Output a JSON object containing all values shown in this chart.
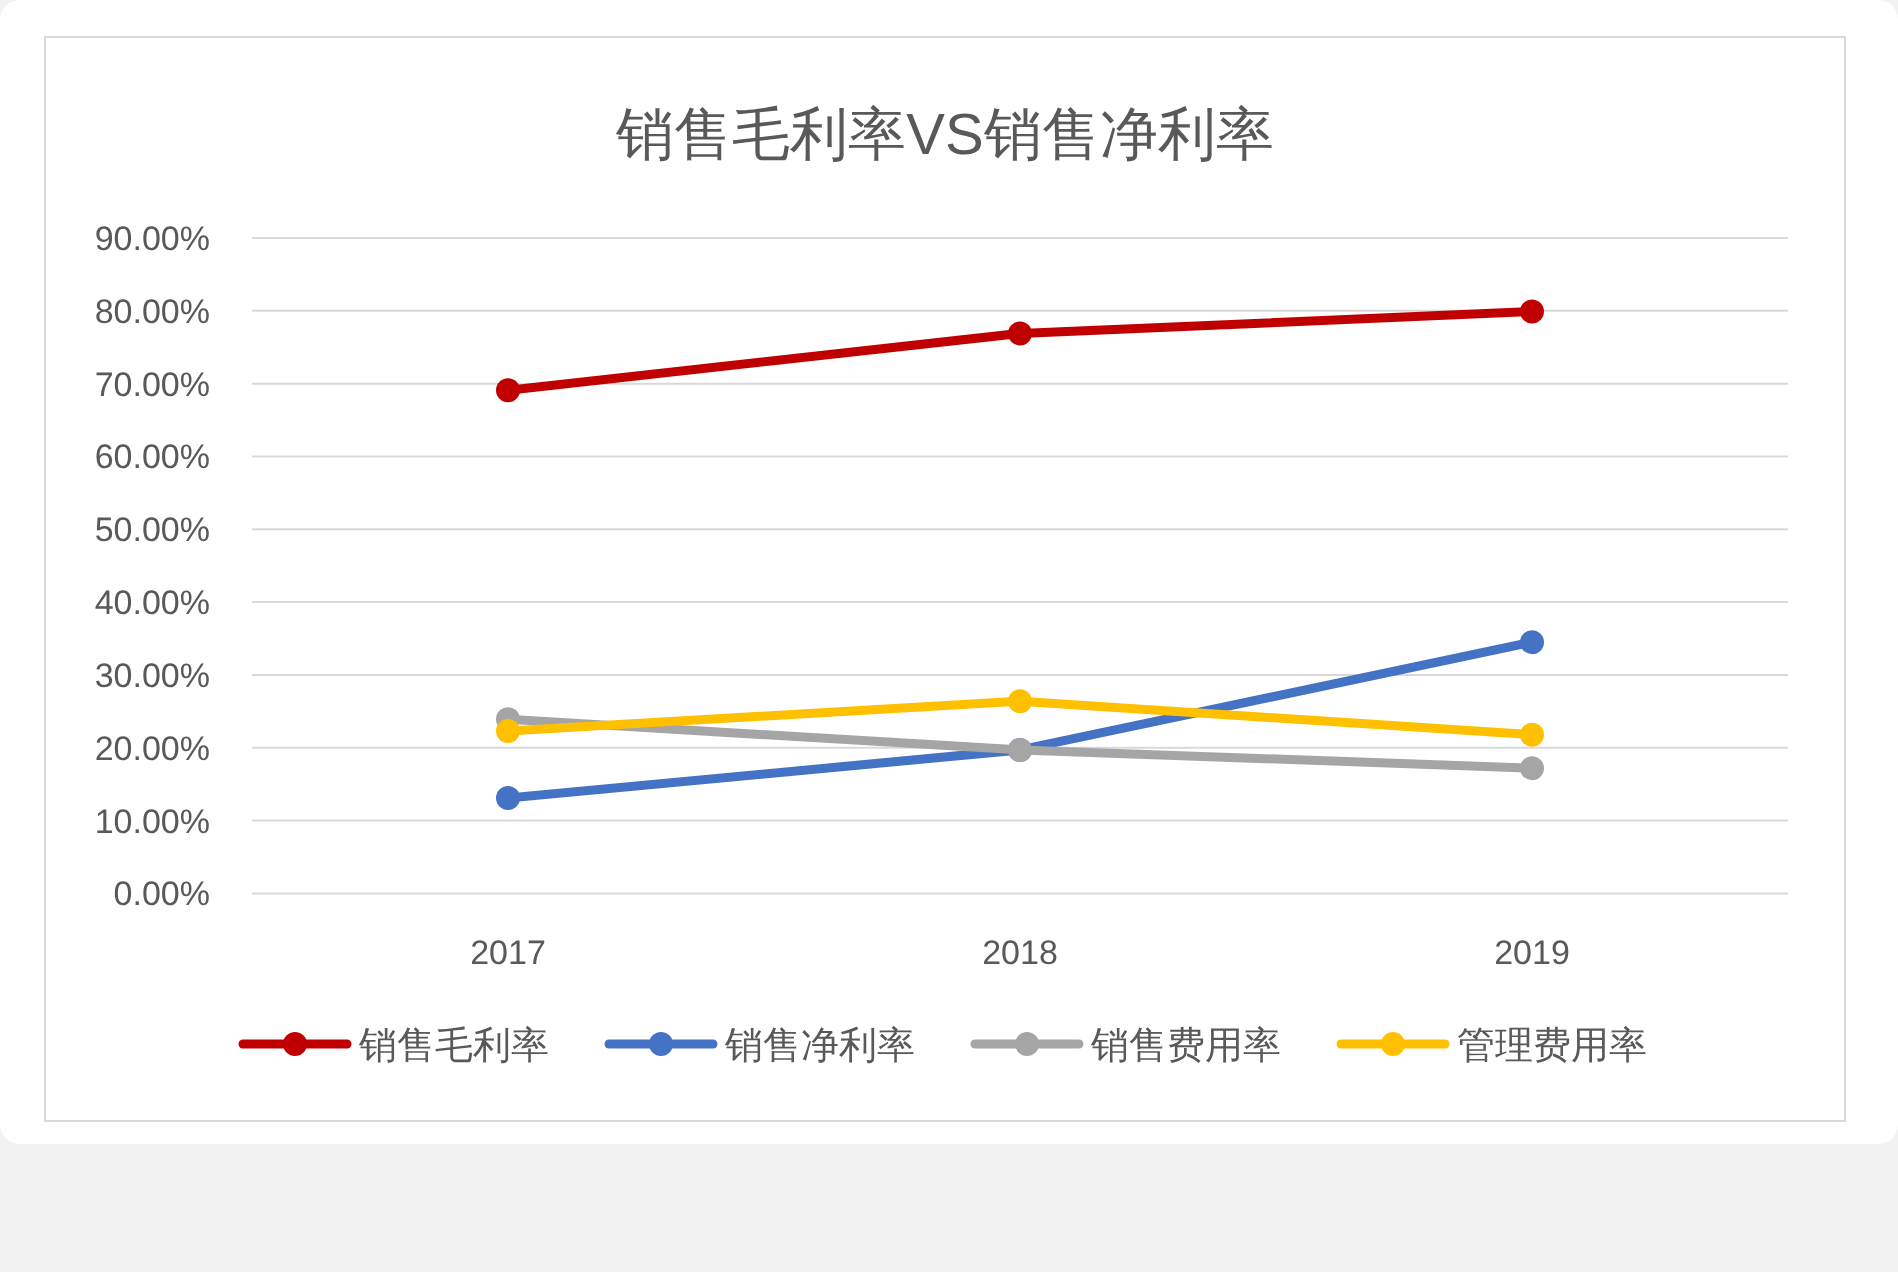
{
  "chart_data": {
    "type": "line",
    "title": "销售毛利率VS销售净利率",
    "categories": [
      "2017",
      "2018",
      "2019"
    ],
    "series": [
      {
        "name": "销售毛利率",
        "color": "#c00000",
        "values": [
          69.1,
          76.9,
          79.9
        ]
      },
      {
        "name": "销售净利率",
        "color": "#4472c4",
        "values": [
          13.1,
          19.7,
          34.5
        ]
      },
      {
        "name": "销售费用率",
        "color": "#a5a5a5",
        "values": [
          23.9,
          19.7,
          17.2
        ]
      },
      {
        "name": "管理费用率",
        "color": "#ffc000",
        "values": [
          22.3,
          26.4,
          21.8
        ]
      }
    ],
    "ylim": [
      0,
      90
    ],
    "yticks": [
      {
        "value": 0,
        "label": "0.00%"
      },
      {
        "value": 10,
        "label": "10.00%"
      },
      {
        "value": 20,
        "label": "20.00%"
      },
      {
        "value": 30,
        "label": "30.00%"
      },
      {
        "value": 40,
        "label": "40.00%"
      },
      {
        "value": 50,
        "label": "50.00%"
      },
      {
        "value": 60,
        "label": "60.00%"
      },
      {
        "value": 70,
        "label": "70.00%"
      },
      {
        "value": 80,
        "label": "80.00%"
      },
      {
        "value": 90,
        "label": "90.00%"
      }
    ],
    "grid": "y",
    "legend": "bottom",
    "marker": "circle",
    "line_style": "solid"
  }
}
